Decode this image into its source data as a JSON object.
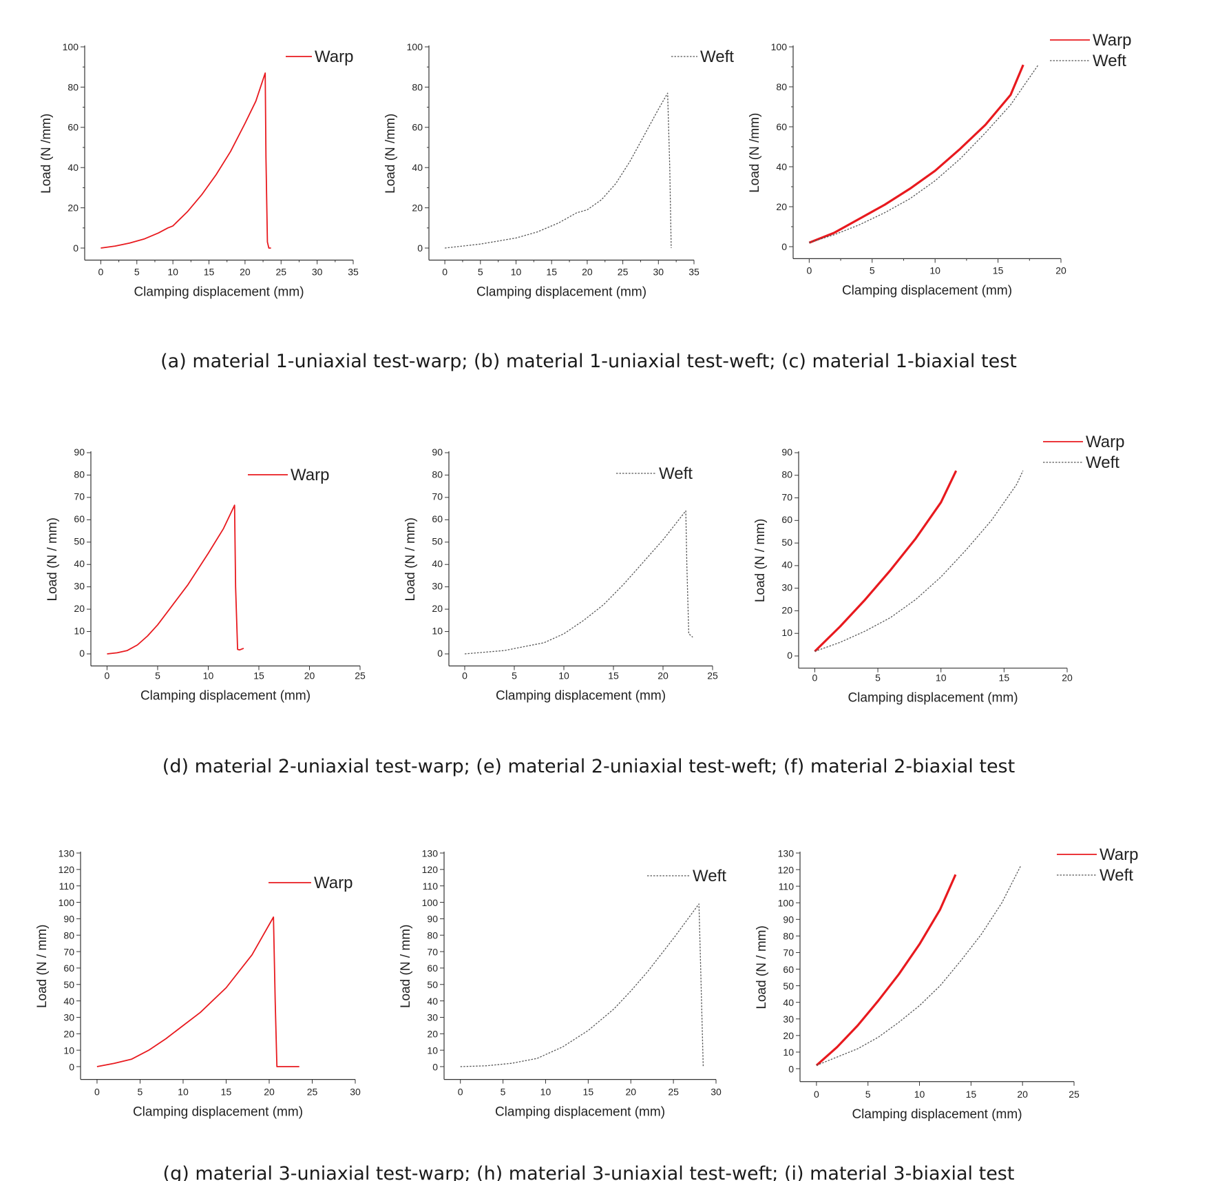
{
  "captions": [
    "(a) material 1-uniaxial test-warp; (b) material 1-uniaxial test-weft; (c) material 1-biaxial test",
    "(d) material 2-uniaxial test-warp; (e) material 2-uniaxial test-weft; (f) material 2-biaxial test",
    "(g) material 3-uniaxial test-warp; (h) material 3-uniaxial test-weft; (i) material 3-biaxial test"
  ],
  "colors": {
    "warp": "#e8191e",
    "weft": "#555555",
    "axis": "#333333"
  },
  "chart_data": [
    {
      "id": "a",
      "type": "line",
      "xlabel": "Clamping displacement (mm)",
      "ylabel": "Load (N /mm)",
      "xlim": [
        0,
        35
      ],
      "ylim": [
        0,
        100
      ],
      "xticks": [
        0,
        5,
        10,
        15,
        20,
        25,
        30,
        35
      ],
      "yticks": [
        0,
        20,
        40,
        60,
        80,
        100
      ],
      "xminor": true,
      "yminor": true,
      "legend_position": "top-right",
      "series": [
        {
          "name": "Warp",
          "style": "warp",
          "x": [
            0,
            2,
            4,
            6,
            8,
            9.3,
            10,
            12,
            14,
            16,
            18,
            20,
            21.5,
            22.8,
            22.9,
            23.1,
            23.3,
            23.6
          ],
          "y": [
            0,
            1,
            2.5,
            4.5,
            7.5,
            10,
            11,
            18,
            26.5,
            36.5,
            48,
            62,
            73,
            87,
            45,
            3,
            0,
            0
          ]
        }
      ]
    },
    {
      "id": "b",
      "type": "line",
      "xlabel": "Clamping displacement (mm)",
      "ylabel": "Load (N /mm)",
      "xlim": [
        0,
        35
      ],
      "ylim": [
        0,
        100
      ],
      "xticks": [
        0,
        5,
        10,
        15,
        20,
        25,
        30,
        35
      ],
      "yticks": [
        0,
        20,
        40,
        60,
        80,
        100
      ],
      "xminor": true,
      "yminor": true,
      "legend_position": "top-right",
      "series": [
        {
          "name": "Weft",
          "style": "weft",
          "x": [
            0,
            5,
            10,
            13,
            16,
            18.5,
            20,
            22,
            24,
            26,
            28,
            30,
            31.3,
            31.6,
            31.8
          ],
          "y": [
            0,
            2,
            5,
            8,
            12.5,
            17.5,
            19,
            24,
            32,
            43,
            56,
            69,
            77,
            40,
            0
          ]
        }
      ]
    },
    {
      "id": "c",
      "type": "line",
      "xlabel": "Clamping displacement (mm)",
      "ylabel": "Load (N /mm)",
      "xlim": [
        0,
        20
      ],
      "ylim": [
        0,
        100
      ],
      "xticks": [
        0,
        5,
        10,
        15,
        20
      ],
      "yticks": [
        0,
        20,
        40,
        60,
        80,
        100
      ],
      "xminor": true,
      "yminor": true,
      "legend_position": "top-right",
      "series": [
        {
          "name": "Warp",
          "style": "warp-thick",
          "x": [
            0,
            2,
            4,
            6,
            8,
            10,
            12,
            14,
            16,
            17
          ],
          "y": [
            2,
            7,
            14,
            21,
            29,
            38,
            49,
            61,
            76,
            91
          ]
        },
        {
          "name": "Weft",
          "style": "weft",
          "x": [
            0,
            2,
            4,
            6,
            8,
            10,
            12,
            14,
            16,
            18.2
          ],
          "y": [
            2,
            6,
            11,
            17,
            24,
            33,
            44,
            57,
            71,
            91
          ]
        }
      ]
    },
    {
      "id": "d",
      "type": "line",
      "xlabel": "Clamping displacement (mm)",
      "ylabel": "Load (N / mm)",
      "xlim": [
        0,
        25
      ],
      "ylim": [
        0,
        90
      ],
      "xticks": [
        0,
        5,
        10,
        15,
        20,
        25
      ],
      "yticks": [
        0,
        10,
        20,
        30,
        40,
        50,
        60,
        70,
        80,
        90
      ],
      "xminor": false,
      "yminor": false,
      "legend_position": "top-right",
      "series": [
        {
          "name": "Warp",
          "style": "warp",
          "x": [
            0,
            1,
            2,
            3,
            4,
            5,
            6,
            8,
            10,
            11.5,
            12.6,
            12.7,
            12.9,
            13.1,
            13.5
          ],
          "y": [
            0,
            0.5,
            1.5,
            4,
            8,
            13,
            19,
            31,
            45,
            56,
            66.5,
            30,
            2,
            1.8,
            2.5
          ]
        }
      ]
    },
    {
      "id": "e",
      "type": "line",
      "xlabel": "Clamping displacement (mm)",
      "ylabel": "Load (N / mm)",
      "xlim": [
        0,
        25
      ],
      "ylim": [
        0,
        90
      ],
      "xticks": [
        0,
        5,
        10,
        15,
        20,
        25
      ],
      "yticks": [
        0,
        10,
        20,
        30,
        40,
        50,
        60,
        70,
        80,
        90
      ],
      "xminor": false,
      "yminor": false,
      "legend_position": "top-right",
      "series": [
        {
          "name": "Weft",
          "style": "weft",
          "x": [
            0,
            4,
            8,
            10,
            12,
            14,
            16,
            18,
            20,
            22.3,
            22.4,
            22.6,
            23
          ],
          "y": [
            0,
            1.5,
            5,
            9,
            15,
            22,
            31,
            41,
            51,
            64,
            40,
            9,
            7.5
          ]
        }
      ]
    },
    {
      "id": "f",
      "type": "line",
      "xlabel": "Clamping displacement (mm)",
      "ylabel": "Load (N / mm)",
      "xlim": [
        0,
        20
      ],
      "ylim": [
        0,
        90
      ],
      "xticks": [
        0,
        5,
        10,
        15,
        20
      ],
      "yticks": [
        0,
        10,
        20,
        30,
        40,
        50,
        60,
        70,
        80,
        90
      ],
      "xminor": false,
      "yminor": false,
      "legend_position": "top-right",
      "series": [
        {
          "name": "Warp",
          "style": "warp-thick",
          "x": [
            0,
            2,
            4,
            6,
            8,
            10,
            11.2
          ],
          "y": [
            2,
            13,
            25,
            38,
            52,
            68,
            82
          ]
        },
        {
          "name": "Weft",
          "style": "weft",
          "x": [
            0,
            2,
            4,
            6,
            8,
            10,
            12,
            14,
            16,
            16.5
          ],
          "y": [
            2,
            6,
            11,
            17,
            25,
            35,
            47,
            60,
            76,
            82
          ]
        }
      ]
    },
    {
      "id": "g",
      "type": "line",
      "xlabel": "Clamping displacement (mm)",
      "ylabel": "Load (N / mm)",
      "xlim": [
        0,
        30
      ],
      "ylim": [
        0,
        130
      ],
      "xticks": [
        0,
        5,
        10,
        15,
        20,
        25,
        30
      ],
      "yticks": [
        0,
        10,
        20,
        30,
        40,
        50,
        60,
        70,
        80,
        90,
        100,
        110,
        120,
        130
      ],
      "xminor": false,
      "yminor": false,
      "legend_position": "top-right",
      "series": [
        {
          "name": "Warp",
          "style": "warp",
          "x": [
            0,
            2,
            4,
            6,
            8,
            10,
            12,
            15,
            18,
            20.5,
            20.7,
            20.9,
            21.5,
            23.5
          ],
          "y": [
            0,
            2,
            4.5,
            10,
            17,
            25,
            33,
            48,
            68,
            91,
            40,
            0,
            0,
            0
          ]
        }
      ]
    },
    {
      "id": "h",
      "type": "line",
      "xlabel": "Clamping displacement (mm)",
      "ylabel": "Load (N / mm)",
      "xlim": [
        0,
        30
      ],
      "ylim": [
        0,
        130
      ],
      "xticks": [
        0,
        5,
        10,
        15,
        20,
        25,
        30
      ],
      "yticks": [
        0,
        10,
        20,
        30,
        40,
        50,
        60,
        70,
        80,
        90,
        100,
        110,
        120,
        130
      ],
      "xminor": false,
      "yminor": false,
      "legend_position": "top-right",
      "series": [
        {
          "name": "Weft",
          "style": "weft",
          "x": [
            0,
            3,
            6,
            9,
            12,
            15,
            18,
            20,
            22,
            25,
            28,
            28.2,
            28.5
          ],
          "y": [
            0,
            0.5,
            2,
            5,
            12,
            22,
            35,
            46,
            58,
            78,
            99,
            60,
            0
          ]
        }
      ]
    },
    {
      "id": "i",
      "type": "line",
      "xlabel": "Clamping displacement (mm)",
      "ylabel": "Load (N / mm)",
      "xlim": [
        0,
        25
      ],
      "ylim": [
        0,
        130
      ],
      "xticks": [
        0,
        5,
        10,
        15,
        20,
        25
      ],
      "yticks": [
        0,
        10,
        20,
        30,
        40,
        50,
        60,
        70,
        80,
        90,
        100,
        110,
        120,
        130
      ],
      "xminor": false,
      "yminor": false,
      "legend_position": "top-right",
      "series": [
        {
          "name": "Warp",
          "style": "warp-thick",
          "x": [
            0,
            2,
            4,
            6,
            8,
            10,
            12,
            13.5
          ],
          "y": [
            2,
            13,
            26,
            41,
            57,
            75,
            96,
            117
          ]
        },
        {
          "name": "Weft",
          "style": "weft",
          "x": [
            0,
            2,
            4,
            6,
            8,
            10,
            12,
            14,
            16,
            18,
            19.8
          ],
          "y": [
            2,
            7,
            12,
            19,
            28,
            38,
            50,
            65,
            81,
            100,
            122
          ]
        }
      ]
    }
  ]
}
